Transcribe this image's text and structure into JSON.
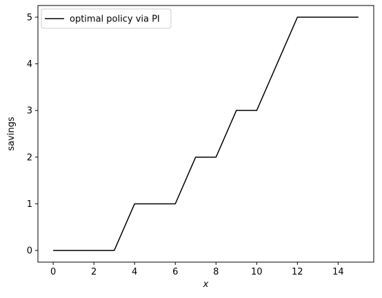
{
  "chart_data": {
    "type": "line",
    "title": "",
    "xlabel": "x",
    "ylabel": "savings",
    "xlim": [
      -0.75,
      15.75
    ],
    "ylim": [
      -0.25,
      5.25
    ],
    "xticks": [
      0,
      2,
      4,
      6,
      8,
      10,
      12,
      14
    ],
    "yticks": [
      0,
      1,
      2,
      3,
      4,
      5
    ],
    "grid": false,
    "legend_position": "top-left",
    "series": [
      {
        "name": "optimal policy via PI",
        "color": "#000000",
        "x": [
          0,
          1,
          2,
          3,
          4,
          5,
          6,
          7,
          8,
          9,
          10,
          11,
          12,
          13,
          14,
          15
        ],
        "y": [
          0,
          0,
          0,
          0,
          1,
          1,
          1,
          2,
          2,
          3,
          3,
          4,
          5,
          5,
          5,
          5
        ]
      }
    ]
  }
}
